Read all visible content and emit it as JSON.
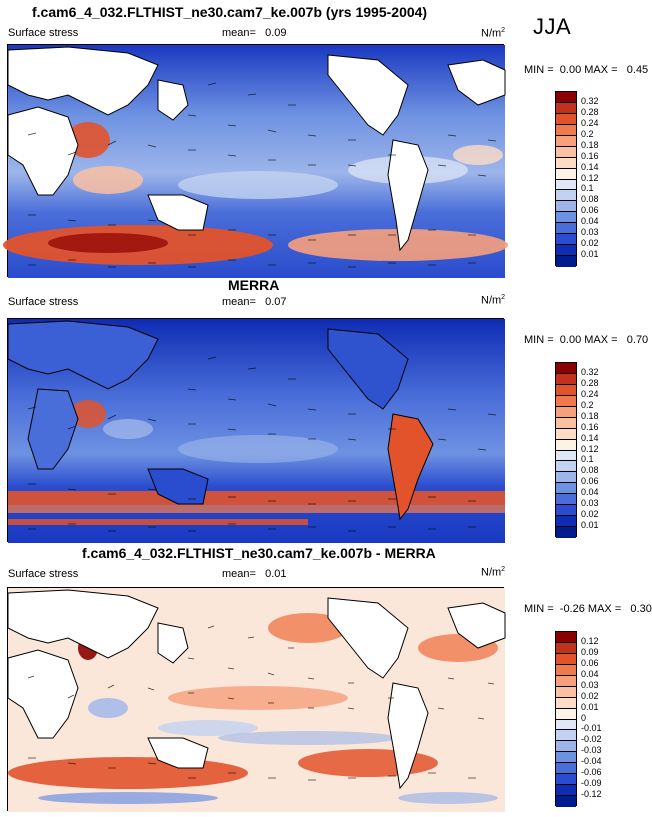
{
  "season": "JJA",
  "panels": [
    {
      "title": "f.cam6_4_032.FLTHIST_ne30.cam7_ke.007b (yrs 1995-2004)",
      "variable": "Surface stress",
      "mean_label": "mean=",
      "mean_value": "0.09",
      "units": "N/m",
      "units_sup": "2",
      "min_label": "MIN =",
      "min_value": "0.00",
      "max_label": "MAX =",
      "max_value": "0.45",
      "levels": [
        "0.32",
        "0.28",
        "0.24",
        "0.2",
        "0.18",
        "0.16",
        "0.14",
        "0.12",
        "0.1",
        "0.08",
        "0.06",
        "0.04",
        "0.03",
        "0.02",
        "0.01"
      ],
      "colors": [
        "#8b0000",
        "#c0321c",
        "#e2532c",
        "#f07a4e",
        "#f6a07c",
        "#f9c0a2",
        "#fcdcc6",
        "#fdf2e6",
        "#e0e8f7",
        "#c2d2f0",
        "#9db5ea",
        "#6e92e2",
        "#4a6ed9",
        "#2a4cce",
        "#0e2cb4",
        "#001b8c"
      ]
    },
    {
      "title": "MERRA",
      "variable": "Surface stress",
      "mean_label": "mean=",
      "mean_value": "0.07",
      "units": "N/m",
      "units_sup": "2",
      "min_label": "MIN =",
      "min_value": "0.00",
      "max_label": "MAX =",
      "max_value": "0.70",
      "levels": [
        "0.32",
        "0.28",
        "0.24",
        "0.2",
        "0.18",
        "0.16",
        "0.14",
        "0.12",
        "0.1",
        "0.08",
        "0.06",
        "0.04",
        "0.03",
        "0.02",
        "0.01"
      ],
      "colors": [
        "#8b0000",
        "#c0321c",
        "#e2532c",
        "#f07a4e",
        "#f6a07c",
        "#f9c0a2",
        "#fcdcc6",
        "#fdf2e6",
        "#e0e8f7",
        "#c2d2f0",
        "#9db5ea",
        "#6e92e2",
        "#4a6ed9",
        "#2a4cce",
        "#0e2cb4",
        "#001b8c"
      ]
    },
    {
      "title": "f.cam6_4_032.FLTHIST_ne30.cam7_ke.007b - MERRA",
      "variable": "Surface stress",
      "mean_label": "mean=",
      "mean_value": "0.01",
      "units": "N/m",
      "units_sup": "2",
      "min_label": "MIN =",
      "min_value": "-0.26",
      "max_label": "MAX =",
      "max_value": "0.30",
      "levels": [
        "0.12",
        "0.09",
        "0.06",
        "0.04",
        "0.03",
        "0.02",
        "0.01",
        "0",
        "-0.01",
        "-0.02",
        "-0.03",
        "-0.04",
        "-0.06",
        "-0.09",
        "-0.12"
      ],
      "colors": [
        "#8b0000",
        "#c0321c",
        "#e2532c",
        "#f07a4e",
        "#f6a07c",
        "#f9c0a2",
        "#fcdcc6",
        "#fdf2e6",
        "#e0e8f7",
        "#c2d2f0",
        "#9db5ea",
        "#6e92e2",
        "#4a6ed9",
        "#2a4cce",
        "#0e2cb4",
        "#001b8c"
      ]
    }
  ]
}
